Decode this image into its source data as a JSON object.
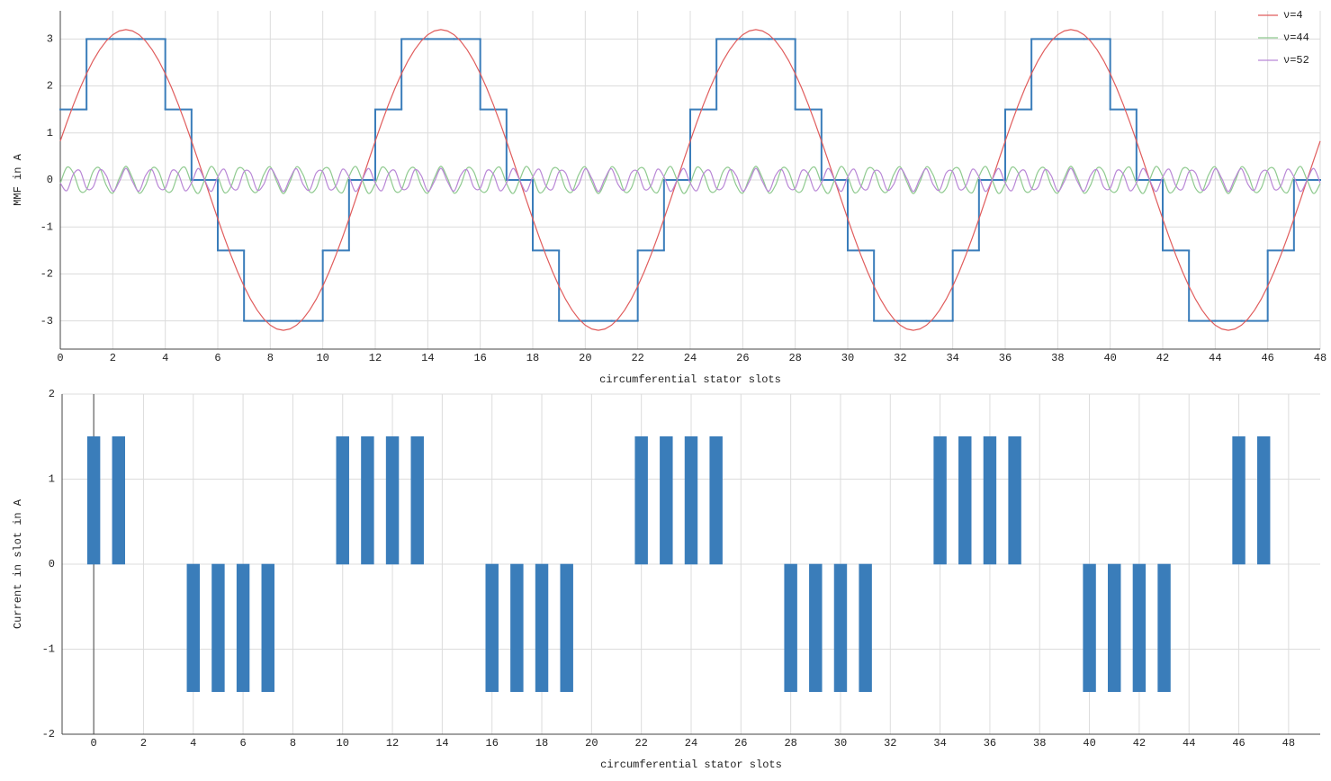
{
  "chart_data": [
    {
      "type": "line",
      "ylabel": "MMF in A",
      "xlabel": "circumferential stator slots",
      "xlim": [
        0,
        48
      ],
      "ylim": [
        -3.6,
        3.6
      ],
      "xticks": [
        0,
        2,
        4,
        6,
        8,
        10,
        12,
        14,
        16,
        18,
        20,
        22,
        24,
        26,
        28,
        30,
        32,
        34,
        36,
        38,
        40,
        42,
        44,
        46,
        48
      ],
      "yticks": [
        -3,
        -2,
        -1,
        0,
        1,
        2,
        3
      ],
      "grid": true,
      "legend": "upper right",
      "x": [
        0,
        0.25,
        0.5,
        0.75,
        1,
        1.25,
        1.5,
        1.75,
        2,
        2.25,
        2.5,
        2.75,
        3,
        3.25,
        3.5,
        3.75,
        4,
        4.25,
        4.5,
        4.75,
        5,
        5.25,
        5.5,
        5.75,
        6,
        6.25,
        6.5,
        6.75,
        7,
        7.25,
        7.5,
        7.75,
        8,
        8.25,
        8.5,
        8.75,
        9,
        9.25,
        9.5,
        9.75,
        10,
        10.25,
        10.5,
        10.75,
        11,
        11.25,
        11.5,
        11.75,
        12,
        12.25,
        12.5,
        12.75,
        13,
        13.25,
        13.5,
        13.75,
        14,
        14.25,
        14.5,
        14.75,
        15,
        15.25,
        15.5,
        15.75,
        16,
        16.25,
        16.5,
        16.75,
        17,
        17.25,
        17.5,
        17.75,
        18,
        18.25,
        18.5,
        18.75,
        19,
        19.25,
        19.5,
        19.75,
        20,
        20.25,
        20.5,
        20.75,
        21,
        21.25,
        21.5,
        21.75,
        22,
        22.25,
        22.5,
        22.75,
        23,
        23.25,
        23.5,
        23.75,
        24,
        24.25,
        24.5,
        24.75,
        25,
        25.25,
        25.5,
        25.75,
        26,
        26.25,
        26.5,
        26.75,
        27,
        27.25,
        27.5,
        27.75,
        28,
        28.25,
        28.5,
        28.75,
        29,
        29.25,
        29.5,
        29.75,
        30,
        30.25,
        30.5,
        30.75,
        31,
        31.25,
        31.5,
        31.75,
        32,
        32.25,
        32.5,
        32.75,
        33,
        33.25,
        33.5,
        33.75,
        34,
        34.25,
        34.5,
        34.75,
        35,
        35.25,
        35.5,
        35.75,
        36,
        36.25,
        36.5,
        36.75,
        37,
        37.25,
        37.5,
        37.75,
        38,
        38.25,
        38.5,
        38.75,
        39,
        39.25,
        39.5,
        39.75,
        40,
        40.25,
        40.5,
        40.75,
        41,
        41.25,
        41.5,
        41.75,
        42,
        42.25,
        42.5,
        42.75,
        43,
        43.25,
        43.5,
        43.75,
        44,
        44.25,
        44.5,
        44.75,
        45,
        45.25,
        45.5,
        45.75,
        46,
        46.25,
        46.5,
        46.75,
        47,
        47.25,
        47.5,
        47.75,
        48
      ],
      "series": [
        {
          "color": "#3a7dba",
          "drawstyle": "steps-post",
          "x": [
            0,
            1,
            2,
            3,
            4,
            5,
            6,
            7,
            8,
            9,
            10,
            11,
            12,
            13,
            14,
            15,
            16,
            17,
            18,
            19,
            20,
            21,
            22,
            23,
            24,
            25,
            26,
            27,
            28,
            29,
            30,
            31,
            32,
            33,
            34,
            35,
            36,
            37,
            38,
            39,
            40,
            41,
            42,
            43,
            44,
            45,
            46,
            47,
            48
          ],
          "values": [
            1.5,
            3,
            3,
            3,
            1.5,
            0,
            -1.5,
            -3,
            -3,
            -3,
            -1.5,
            0,
            1.5,
            3,
            3,
            3,
            1.5,
            0,
            -1.5,
            -3,
            -3,
            -3,
            -1.5,
            0,
            1.5,
            3,
            3,
            3,
            1.5,
            0,
            -1.5,
            -3,
            -3,
            -3,
            -1.5,
            0,
            1.5,
            3,
            3,
            3,
            1.5,
            0,
            -1.5,
            -3,
            -3,
            -3,
            -1.5,
            0,
            0
          ]
        },
        {
          "name": "ν=4",
          "color": "#e05c5c",
          "values": [
            0.828,
            1.225,
            1.6,
            1.948,
            2.263,
            2.539,
            2.771,
            2.956,
            3.091,
            3.172,
            3.2,
            3.172,
            3.091,
            2.956,
            2.771,
            2.539,
            2.263,
            1.948,
            1.6,
            1.225,
            0.828,
            0.418,
            0,
            -0.418,
            -0.828,
            -1.225,
            -1.6,
            -1.948,
            -2.263,
            -2.539,
            -2.771,
            -2.956,
            -3.091,
            -3.172,
            -3.2,
            -3.172,
            -3.091,
            -2.956,
            -2.771,
            -2.539,
            -2.263,
            -1.948,
            -1.6,
            -1.225,
            -0.828,
            -0.418,
            0,
            0.418,
            0.828,
            1.225,
            1.6,
            1.948,
            2.263,
            2.539,
            2.771,
            2.956,
            3.091,
            3.172,
            3.2,
            3.172,
            3.091,
            2.956,
            2.771,
            2.539,
            2.263,
            1.948,
            1.6,
            1.225,
            0.828,
            0.418,
            0,
            -0.418,
            -0.828,
            -1.225,
            -1.6,
            -1.948,
            -2.263,
            -2.539,
            -2.771,
            -2.956,
            -3.091,
            -3.172,
            -3.2,
            -3.172,
            -3.091,
            -2.956,
            -2.771,
            -2.539,
            -2.263,
            -1.948,
            -1.6,
            -1.225,
            -0.828,
            -0.418,
            0,
            0.418,
            0.828,
            1.225,
            1.6,
            1.948,
            2.263,
            2.539,
            2.771,
            2.956,
            3.091,
            3.172,
            3.2,
            3.172,
            3.091,
            2.956,
            2.771,
            2.539,
            2.263,
            1.948,
            1.6,
            1.225,
            0.828,
            0.418,
            0,
            -0.418,
            -0.828,
            -1.225,
            -1.6,
            -1.948,
            -2.263,
            -2.539,
            -2.771,
            -2.956,
            -3.091,
            -3.172,
            -3.2,
            -3.172,
            -3.091,
            -2.956,
            -2.771,
            -2.539,
            -2.263,
            -1.948,
            -1.6,
            -1.225,
            -0.828,
            -0.418,
            0,
            0.418,
            0.828,
            1.225,
            1.6,
            1.948,
            2.263,
            2.539,
            2.771,
            2.956,
            3.091,
            3.172,
            3.2,
            3.172,
            3.091,
            2.956,
            2.771,
            2.539,
            2.263,
            1.948,
            1.6,
            1.225,
            0.828,
            0.418,
            0,
            -0.418,
            -0.828,
            -1.225,
            -1.6,
            -1.948,
            -2.263,
            -2.539,
            -2.771,
            -2.956,
            -3.091,
            -3.172,
            -3.2,
            -3.172,
            -3.091,
            -2.956,
            -2.771,
            -2.539,
            -2.263,
            -1.948,
            -1.6,
            -1.225,
            -0.828,
            -0.418,
            0,
            0.418,
            0.828
          ]
        },
        {
          "name": "ν=44",
          "color": "#8fca8f",
          "smooth": true,
          "values": [
            -0.075,
            0.268,
            0.145,
            -0.23,
            -0.205,
            0.177,
            0.251,
            -0.111,
            -0.28,
            0.038,
            0.29,
            0.038,
            -0.28,
            -0.111,
            0.251,
            0.177,
            -0.205,
            -0.23,
            0.145,
            0.268,
            -0.075,
            -0.288,
            0,
            0.288,
            0.075,
            -0.268,
            -0.145,
            0.23,
            0.205,
            -0.177,
            -0.251,
            0.111,
            0.28,
            -0.038,
            -0.29,
            -0.038,
            0.28,
            0.111,
            -0.251,
            -0.177,
            0.205,
            0.23,
            -0.145,
            -0.268,
            0.075,
            0.288,
            0,
            -0.288,
            -0.075,
            0.268,
            0.145,
            -0.23,
            -0.205,
            0.177,
            0.251,
            -0.111,
            -0.28,
            0.038,
            0.29,
            0.038,
            -0.28,
            -0.111,
            0.251,
            0.177,
            -0.205,
            -0.23,
            0.145,
            0.268,
            -0.075,
            -0.288,
            0,
            0.288,
            0.075,
            -0.268,
            -0.145,
            0.23,
            0.205,
            -0.177,
            -0.251,
            0.111,
            0.28,
            -0.038,
            -0.29,
            -0.038,
            0.28,
            0.111,
            -0.251,
            -0.177,
            0.205,
            0.23,
            -0.145,
            -0.268,
            0.075,
            0.288,
            0,
            -0.288,
            -0.075,
            0.268,
            0.145,
            -0.23,
            -0.205,
            0.177,
            0.251,
            -0.111,
            -0.28,
            0.038,
            0.29,
            0.038,
            -0.28,
            -0.111,
            0.251,
            0.177,
            -0.205,
            -0.23,
            0.145,
            0.268,
            -0.075,
            -0.288,
            0,
            0.288,
            0.075,
            -0.268,
            -0.145,
            0.23,
            0.205,
            -0.177,
            -0.251,
            0.111,
            0.28,
            -0.038,
            -0.29,
            -0.038,
            0.28,
            0.111,
            -0.251,
            -0.177,
            0.205,
            0.23,
            -0.145,
            -0.268,
            0.075,
            0.288,
            0,
            -0.288,
            -0.075,
            0.268,
            0.145,
            -0.23,
            -0.205,
            0.177,
            0.251,
            -0.111,
            -0.28,
            0.038,
            0.29,
            0.038,
            -0.28,
            -0.111,
            0.251,
            0.177,
            -0.205,
            -0.23,
            0.145,
            0.268,
            -0.075,
            -0.288,
            0,
            0.288,
            0.075,
            -0.268,
            -0.145,
            0.23,
            0.205,
            -0.177,
            -0.251,
            0.111,
            0.28,
            -0.038,
            -0.29,
            -0.038,
            0.28,
            0.111,
            -0.251,
            -0.177,
            0.205,
            0.23,
            -0.145,
            -0.268,
            0.075,
            0.288,
            0,
            -0.288,
            -0.075
          ]
        },
        {
          "name": "ν=52",
          "color": "#b987d6",
          "smooth": true,
          "values": [
            -0.064,
            -0.227,
            0.123,
            0.195,
            -0.174,
            -0.15,
            0.213,
            0.094,
            -0.238,
            -0.032,
            0.246,
            -0.032,
            -0.238,
            0.094,
            0.213,
            -0.15,
            -0.174,
            0.195,
            0.123,
            -0.227,
            -0.064,
            0.244,
            0,
            -0.244,
            0.064,
            0.227,
            -0.123,
            -0.195,
            0.174,
            0.15,
            -0.213,
            -0.094,
            0.238,
            0.032,
            -0.246,
            0.032,
            0.238,
            -0.094,
            -0.213,
            0.15,
            0.174,
            -0.195,
            -0.123,
            0.227,
            0.064,
            -0.244,
            0,
            0.244,
            -0.064,
            -0.227,
            0.123,
            0.195,
            -0.174,
            -0.15,
            0.213,
            0.094,
            -0.238,
            -0.032,
            0.246,
            -0.032,
            -0.238,
            0.094,
            0.213,
            -0.15,
            -0.174,
            0.195,
            0.123,
            -0.227,
            -0.064,
            0.244,
            0,
            -0.244,
            0.064,
            0.227,
            -0.123,
            -0.195,
            0.174,
            0.15,
            -0.213,
            -0.094,
            0.238,
            0.032,
            -0.246,
            0.032,
            0.238,
            -0.094,
            -0.213,
            0.15,
            0.174,
            -0.195,
            -0.123,
            0.227,
            0.064,
            -0.244,
            0,
            0.244,
            -0.064,
            -0.227,
            0.123,
            0.195,
            -0.174,
            -0.15,
            0.213,
            0.094,
            -0.238,
            -0.032,
            0.246,
            -0.032,
            -0.238,
            0.094,
            0.213,
            -0.15,
            -0.174,
            0.195,
            0.123,
            -0.227,
            -0.064,
            0.244,
            0,
            -0.244,
            0.064,
            0.227,
            -0.123,
            -0.195,
            0.174,
            0.15,
            -0.213,
            -0.094,
            0.238,
            0.032,
            -0.246,
            0.032,
            0.238,
            -0.094,
            -0.213,
            0.15,
            0.174,
            -0.195,
            -0.123,
            0.227,
            0.064,
            -0.244,
            0,
            0.244,
            -0.064,
            -0.227,
            0.123,
            0.195,
            -0.174,
            -0.15,
            0.213,
            0.094,
            -0.238,
            -0.032,
            0.246,
            -0.032,
            -0.238,
            0.094,
            0.213,
            -0.15,
            -0.174,
            0.195,
            0.123,
            -0.227,
            -0.064,
            0.244,
            0,
            -0.244,
            0.064,
            0.227,
            -0.123,
            -0.195,
            0.174,
            0.15,
            -0.213,
            -0.094,
            0.238,
            0.032,
            -0.246,
            0.032,
            0.238,
            -0.094,
            -0.213,
            0.15,
            0.174,
            -0.195,
            -0.123,
            0.227,
            0.064,
            -0.244,
            0,
            0.244,
            -0.064
          ]
        }
      ]
    },
    {
      "type": "bar",
      "ylabel": "Current in slot in A",
      "xlabel": "circumferential stator slots",
      "xlim": [
        -1.27,
        49.27
      ],
      "ylim": [
        -2,
        2
      ],
      "xticks": [
        0,
        2,
        4,
        6,
        8,
        10,
        12,
        14,
        16,
        18,
        20,
        22,
        24,
        26,
        28,
        30,
        32,
        34,
        36,
        38,
        40,
        42,
        44,
        46,
        48
      ],
      "yticks": [
        -2,
        -1,
        0,
        1,
        2
      ],
      "grid": true,
      "color": "#3a7dba",
      "x": [
        0,
        1,
        2,
        3,
        4,
        5,
        6,
        7,
        8,
        9,
        10,
        11,
        12,
        13,
        14,
        15,
        16,
        17,
        18,
        19,
        20,
        21,
        22,
        23,
        24,
        25,
        26,
        27,
        28,
        29,
        30,
        31,
        32,
        33,
        34,
        35,
        36,
        37,
        38,
        39,
        40,
        41,
        42,
        43,
        44,
        45,
        46,
        47
      ],
      "values": [
        1.5,
        1.5,
        0,
        0,
        -1.5,
        -1.5,
        -1.5,
        -1.5,
        0,
        0,
        1.5,
        1.5,
        1.5,
        1.5,
        0,
        0,
        -1.5,
        -1.5,
        -1.5,
        -1.5,
        0,
        0,
        1.5,
        1.5,
        1.5,
        1.5,
        0,
        0,
        -1.5,
        -1.5,
        -1.5,
        -1.5,
        0,
        0,
        1.5,
        1.5,
        1.5,
        1.5,
        0,
        0,
        -1.5,
        -1.5,
        -1.5,
        -1.5,
        0,
        0,
        1.5,
        1.5
      ]
    }
  ]
}
